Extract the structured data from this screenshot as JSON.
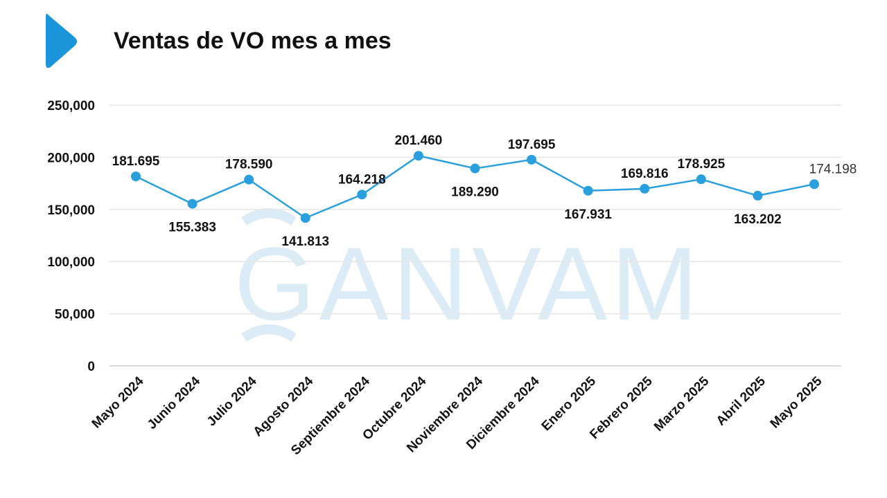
{
  "title": "Ventas de VO mes a mes",
  "watermark": "GANVAM",
  "colors": {
    "accent": "#1b95d9",
    "line": "#2a9fde",
    "grid": "#e6e6e6",
    "watermark": "#dcecf7"
  },
  "chart_data": {
    "type": "line",
    "categories": [
      "Mayo 2024",
      "Junio 2024",
      "Julio 2024",
      "Agosto 2024",
      "Septiembre 2024",
      "Octubre 2024",
      "Noviembre 2024",
      "Diciembre 2024",
      "Enero 2025",
      "Febrero 2025",
      "Marzo 2025",
      "Abril 2025",
      "Mayo 2025"
    ],
    "values": [
      181695,
      155383,
      178590,
      141813,
      164218,
      201460,
      189290,
      197695,
      167931,
      169816,
      178925,
      163202,
      174198
    ],
    "value_labels": [
      "181.695",
      "155.383",
      "178.590",
      "141.813",
      "164.218",
      "201.460",
      "189.290",
      "197.695",
      "167.931",
      "169.816",
      "178.925",
      "163.202",
      "174.198"
    ],
    "label_positions": [
      "above",
      "below",
      "above",
      "below",
      "above",
      "above",
      "below",
      "above",
      "below",
      "above",
      "above",
      "below",
      "above"
    ],
    "ylim": [
      0,
      250000
    ],
    "yticks": [
      0,
      50000,
      100000,
      150000,
      200000,
      250000
    ],
    "ytick_labels": [
      "0",
      "50,000",
      "100,000",
      "150,000",
      "200,000",
      "250,000"
    ],
    "grid": true,
    "legend": "none",
    "title": "Ventas de VO mes a mes",
    "xlabel": "",
    "ylabel": ""
  }
}
